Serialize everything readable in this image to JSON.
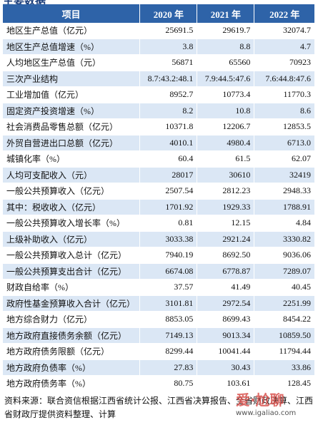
{
  "header": {
    "title": "主要数据"
  },
  "table": {
    "columns": [
      "项目",
      "2020 年",
      "2021 年",
      "2022 年"
    ],
    "rows": [
      [
        "地区生产总值（亿元）",
        "25691.5",
        "29619.7",
        "32074.7"
      ],
      [
        "地区生产总值增速（%）",
        "3.8",
        "8.8",
        "4.7"
      ],
      [
        "人均地区生产总值（元）",
        "56871",
        "65560",
        "70923"
      ],
      [
        "三次产业结构",
        "8.7:43.2:48.1",
        "7.9:44.5:47.6",
        "7.6:44.8:47.6"
      ],
      [
        "工业增加值（亿元）",
        "8952.7",
        "10773.4",
        "11770.3"
      ],
      [
        "固定资产投资增速（%）",
        "8.2",
        "10.8",
        "8.6"
      ],
      [
        "社会消费品零售总额（亿元）",
        "10371.8",
        "12206.7",
        "12853.5"
      ],
      [
        "外贸自营进出口总额（亿元）",
        "4010.1",
        "4980.4",
        "6713.0"
      ],
      [
        "城镇化率（%）",
        "60.4",
        "61.5",
        "62.07"
      ],
      [
        "人均可支配收入（元）",
        "28017",
        "30610",
        "32419"
      ],
      [
        "一般公共预算收入（亿元）",
        "2507.54",
        "2812.23",
        "2948.33"
      ],
      [
        "其中：税收收入（亿元）",
        "1701.92",
        "1929.33",
        "1788.91"
      ],
      [
        "一般公共预算收入增长率（%）",
        "0.81",
        "12.15",
        "4.84"
      ],
      [
        "上级补助收入（亿元）",
        "3033.38",
        "2921.24",
        "3330.82"
      ],
      [
        "一般公共预算收入总计（亿元）",
        "7940.19",
        "8692.50",
        "9036.06"
      ],
      [
        "一般公共预算支出合计（亿元）",
        "6674.08",
        "6778.87",
        "7289.07"
      ],
      [
        "财政自给率（%）",
        "37.57",
        "41.49",
        "40.45"
      ],
      [
        "政府性基金预算收入合计（亿元）",
        "3101.81",
        "2972.54",
        "2251.99"
      ],
      [
        "地方综合财力（亿元）",
        "8853.05",
        "8699.43",
        "8454.22"
      ],
      [
        "地方政府直接债务余额（亿元）",
        "7149.13",
        "9013.34",
        "10859.50"
      ],
      [
        "地方政府债务限额（亿元）",
        "8299.44",
        "10041.44",
        "11794.44"
      ],
      [
        "地方政府负债率（%）",
        "27.83",
        "30.43",
        "33.86"
      ],
      [
        "地方政府债务率（%）",
        "80.75",
        "103.61",
        "128.45"
      ]
    ]
  },
  "footer": {
    "source": "资料来源：联合资信根据江西省统计公报、江西省决算报告、全省财政决算、江西省财政厅提供资料整理、计算"
  },
  "watermark": {
    "brand": "爱·尬聊",
    "url": "www.igaliao.com"
  }
}
